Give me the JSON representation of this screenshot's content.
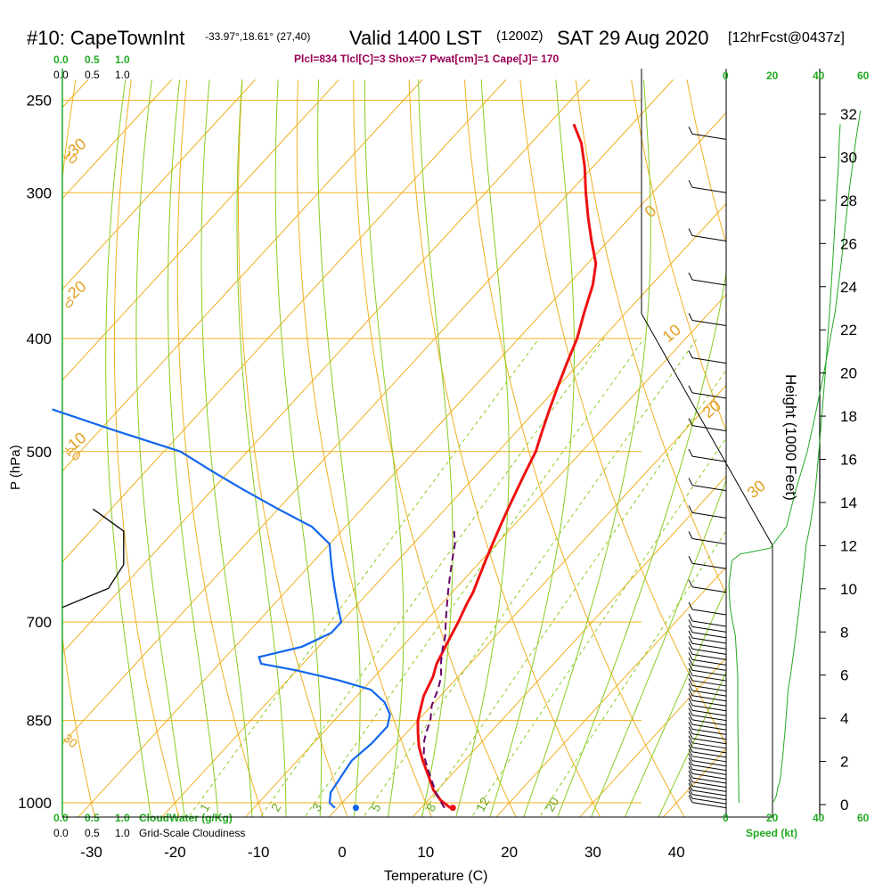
{
  "header": {
    "station": "#10: CapeTownInt",
    "coords": "-33.97°,18.61° (27,40)",
    "valid": "Valid 1400 LST",
    "utc": "(1200Z)",
    "date": "SAT 29 Aug 2020",
    "forecast": "[12hrFcst@0437z]",
    "indices": "Plcl=834 Tlcl[C]=3 Shox=7 Pwat[cm]=1 Cape[J]= 170"
  },
  "colors": {
    "temperature": "#ee1111",
    "dewpoint": "#1166ee",
    "parcel": "#660066",
    "isobar": "#f0b020",
    "mixing_ratio": "#88cc22",
    "grid_green": "#22aa22",
    "wind": "#000000",
    "cloud": "#000000"
  },
  "scales": {
    "cloud_top_green": [
      "0.0",
      "0.5",
      "1.0"
    ],
    "cloud_top_black": [
      "0.0",
      "0.5",
      "1.0"
    ],
    "cloud_bottom_green": [
      "0.0",
      "0.5",
      "1.0"
    ],
    "cloud_bottom_black": [
      "0.0",
      "0.5",
      "1.0"
    ],
    "cloudwater_label": "CloudWater (g/Kg)",
    "cloudiness_label": "Grid-Scale Cloudiness",
    "speed_top": [
      "0",
      "20",
      "40",
      "60"
    ],
    "speed_bottom": [
      "0",
      "20",
      "40",
      "60"
    ],
    "speed_label": "Speed (kt)"
  },
  "chart_data": {
    "type": "line",
    "xlabel": "Temperature (C)",
    "ylabel": "P (hPa)",
    "y2label": "Height (1000 Feet)",
    "x_ticks": [
      "-30",
      "-20",
      "-10",
      "0",
      "10",
      "20",
      "30",
      "40"
    ],
    "p_ticks": [
      "250",
      "300",
      "400",
      "500",
      "700",
      "850",
      "1000"
    ],
    "height_ticks": [
      "0",
      "2",
      "4",
      "6",
      "8",
      "10",
      "12",
      "14",
      "16",
      "18",
      "20",
      "22",
      "24",
      "26",
      "28",
      "30",
      "32"
    ],
    "isotherm_labels": [
      "-30",
      "-20",
      "-10",
      "0",
      "10",
      "20",
      "30"
    ],
    "dry_adiabat_labels": [
      "-10",
      "0",
      "10",
      "30"
    ],
    "mixing_ratio_labels": [
      "1",
      "2",
      "3",
      "5",
      "8",
      "12",
      "20"
    ],
    "series": [
      {
        "points": [
          [
            13.5,
            1010
          ],
          [
            11.5,
            995
          ],
          [
            9.5,
            975
          ],
          [
            7.5,
            950
          ],
          [
            5.0,
            920
          ],
          [
            3.0,
            895
          ],
          [
            1.3,
            870
          ],
          [
            0,
            850
          ],
          [
            -1,
            830
          ],
          [
            -2,
            810
          ],
          [
            -2.5,
            795
          ],
          [
            -3,
            780
          ],
          [
            -4,
            760
          ],
          [
            -5,
            730
          ],
          [
            -6,
            700
          ],
          [
            -7,
            675
          ],
          [
            -7.5,
            660
          ],
          [
            -8.5,
            640
          ],
          [
            -9.5,
            620
          ],
          [
            -10.5,
            600
          ],
          [
            -11.5,
            580
          ],
          [
            -12.5,
            560
          ],
          [
            -13.5,
            540
          ],
          [
            -14.5,
            520
          ],
          [
            -15.5,
            500
          ],
          [
            -17,
            480
          ],
          [
            -18.5,
            460
          ],
          [
            -20,
            440
          ],
          [
            -21.5,
            420
          ],
          [
            -23,
            400
          ],
          [
            -25,
            380
          ],
          [
            -27,
            360
          ],
          [
            -29,
            345
          ],
          [
            -32,
            330
          ],
          [
            -35,
            315
          ],
          [
            -38,
            300
          ],
          [
            -41,
            285
          ],
          [
            -44,
            272
          ],
          [
            -47,
            262
          ]
        ]
      },
      {
        "points": [
          [
            -0.3,
            1010
          ],
          [
            -1.5,
            1000
          ],
          [
            -2.5,
            980
          ],
          [
            -3,
            950
          ],
          [
            -3.5,
            920
          ],
          [
            -3,
            890
          ],
          [
            -3,
            860
          ],
          [
            -4,
            840
          ],
          [
            -6,
            820
          ],
          [
            -9,
            800
          ],
          [
            -14,
            785
          ],
          [
            -20,
            770
          ],
          [
            -25,
            760
          ],
          [
            -26,
            750
          ],
          [
            -22,
            735
          ],
          [
            -20,
            715
          ],
          [
            -20,
            700
          ],
          [
            -22,
            680
          ],
          [
            -24,
            660
          ],
          [
            -26,
            640
          ],
          [
            -28,
            620
          ],
          [
            -30,
            600
          ],
          [
            -34,
            580
          ],
          [
            -40,
            560
          ],
          [
            -46,
            540
          ],
          [
            -52,
            520
          ],
          [
            -58,
            500
          ],
          [
            -68,
            480
          ],
          [
            -78,
            460
          ]
        ]
      },
      {
        "points": [
          [
            12.8,
            1010
          ],
          [
            10.5,
            985
          ],
          [
            8.5,
            960
          ],
          [
            6.5,
            935
          ],
          [
            4.5,
            910
          ],
          [
            3,
            885
          ],
          [
            2.3,
            870
          ],
          [
            1.5,
            850
          ],
          [
            0,
            825
          ],
          [
            -1,
            800
          ],
          [
            -2,
            780
          ],
          [
            -3.5,
            760
          ],
          [
            -4.8,
            740
          ],
          [
            -6,
            720
          ],
          [
            -7.5,
            700
          ],
          [
            -9,
            680
          ],
          [
            -10.5,
            660
          ],
          [
            -12,
            640
          ],
          [
            -13.5,
            620
          ],
          [
            -15,
            600
          ],
          [
            -16.5,
            585
          ]
        ]
      },
      {
        "points": [
          [
            -52,
            560
          ],
          [
            -48,
            585
          ],
          [
            -48,
            625
          ],
          [
            -50,
            655
          ],
          [
            -56,
            680
          ]
        ]
      },
      {
        "points": [
          [
            5.5,
            1000
          ],
          [
            5.2,
            900
          ],
          [
            5,
            850
          ],
          [
            5,
            780
          ],
          [
            4,
            720
          ],
          [
            2.8,
            700
          ],
          [
            1.7,
            680
          ],
          [
            1.2,
            650
          ],
          [
            2.5,
            620
          ],
          [
            6,
            612
          ],
          [
            10,
            610
          ],
          [
            19,
            605
          ],
          [
            26,
            580
          ],
          [
            30,
            540
          ],
          [
            35,
            500
          ],
          [
            38,
            470
          ],
          [
            42,
            430
          ],
          [
            47,
            380
          ],
          [
            50,
            340
          ],
          [
            53,
            300
          ],
          [
            56,
            270
          ],
          [
            58,
            255
          ]
        ]
      },
      {
        "points": [
          [
            0,
            1000
          ],
          [
            2,
            995
          ],
          [
            4,
            988
          ],
          [
            5,
            980
          ],
          [
            6,
            970
          ],
          [
            8,
            960
          ],
          [
            9,
            950
          ],
          [
            10,
            935
          ],
          [
            11,
            920
          ],
          [
            12,
            905
          ],
          [
            13,
            885
          ],
          [
            14,
            870
          ],
          [
            15,
            850
          ],
          [
            16,
            830
          ],
          [
            17,
            810
          ],
          [
            18,
            795
          ],
          [
            20,
            780
          ],
          [
            22,
            760
          ],
          [
            24,
            740
          ],
          [
            26,
            720
          ],
          [
            28,
            700
          ],
          [
            30,
            680
          ],
          [
            32,
            660
          ],
          [
            34,
            640
          ],
          [
            36,
            620
          ],
          [
            38,
            600
          ],
          [
            42,
            580
          ],
          [
            45,
            560
          ],
          [
            48,
            540
          ],
          [
            50,
            520
          ],
          [
            52,
            500
          ],
          [
            54,
            480
          ],
          [
            56,
            460
          ],
          [
            58,
            440
          ],
          [
            60,
            420
          ],
          [
            62,
            400
          ],
          [
            64,
            380
          ],
          [
            66,
            360
          ],
          [
            68,
            340
          ],
          [
            70,
            320
          ],
          [
            72,
            300
          ],
          [
            74,
            285
          ],
          [
            75,
            270
          ],
          [
            76,
            262
          ]
        ]
      }
    ],
    "surface_temperature_marker": [
      13.8,
      1010
    ],
    "surface_dewpoint_marker": [
      2.2,
      1010
    ]
  }
}
